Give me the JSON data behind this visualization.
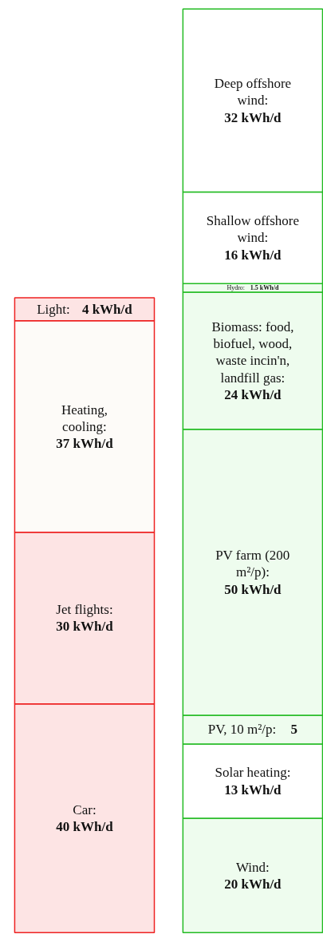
{
  "chart_data": {
    "type": "bar",
    "stacked": true,
    "tick_labels": false,
    "grid": false,
    "categories": [
      null,
      null
    ],
    "series": [
      {
        "name": "Car:",
        "color": "#fde4e4",
        "values": [
          40,
          null
        ],
        "value_labels": [
          "40 kWh/d",
          null
        ]
      },
      {
        "name": "Jet flights:",
        "color": "#fde4e4",
        "values": [
          30,
          null
        ],
        "value_labels": [
          "30 kWh/d",
          null
        ]
      },
      {
        "name": "Heating, cooling:",
        "color": "#fdfbf8",
        "values": [
          37,
          null
        ],
        "value_labels": [
          "37 kWh/d",
          null
        ]
      },
      {
        "name": "Light:",
        "color": "#fde4e4",
        "values": [
          4,
          null
        ],
        "value_labels": [
          "4 kWh/d",
          null
        ]
      },
      {
        "name": "Wind:",
        "color": "#eefcee",
        "values": [
          null,
          20
        ],
        "value_labels": [
          null,
          "20 kWh/d"
        ]
      },
      {
        "name": "Solar heating:",
        "color": "#ffffff",
        "values": [
          null,
          13
        ],
        "value_labels": [
          null,
          "13 kWh/d"
        ]
      },
      {
        "name": "PV, 10 m²/p:",
        "color": "#eefcee",
        "values": [
          null,
          5
        ],
        "value_labels": [
          null,
          "5"
        ]
      },
      {
        "name": "PV farm (200 m²/p):",
        "color": "#eefcee",
        "values": [
          null,
          50
        ],
        "value_labels": [
          null,
          "50 kWh/d"
        ]
      },
      {
        "name": "Biomass: food, biofuel, wood, waste incin'n, landfill gas:",
        "color": "#eefcee",
        "values": [
          null,
          24
        ],
        "value_labels": [
          null,
          "24 kWh/d"
        ]
      },
      {
        "name": "Hydro:",
        "color": "#eefcee",
        "values": [
          null,
          1.5
        ],
        "value_labels": [
          null,
          "1.5 kWh/d"
        ]
      },
      {
        "name": "Shallow offshore wind:",
        "color": "#ffffff",
        "values": [
          null,
          16
        ],
        "value_labels": [
          null,
          "16 kWh/d"
        ]
      },
      {
        "name": "Deep offshore wind:",
        "color": "#ffffff",
        "values": [
          null,
          32
        ],
        "value_labels": [
          null,
          "32 kWh/d"
        ]
      }
    ]
  }
}
